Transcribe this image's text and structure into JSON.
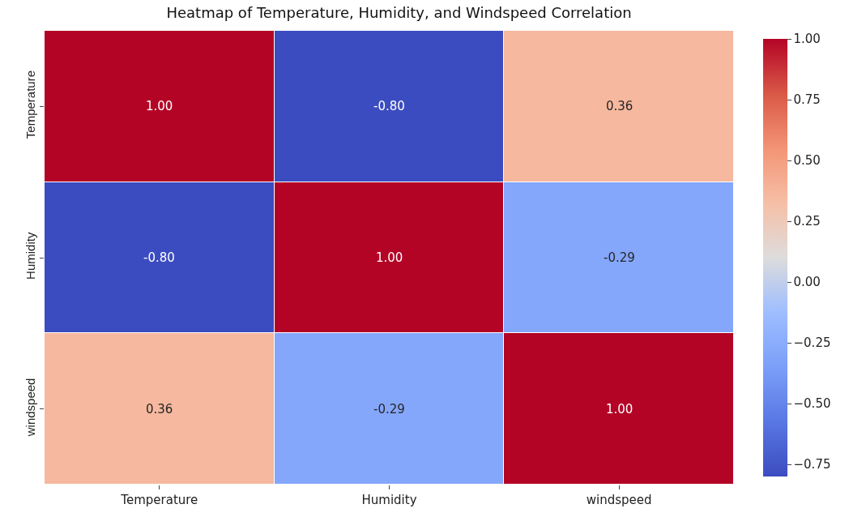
{
  "chart_data": {
    "type": "heatmap",
    "title": "Heatmap of Temperature, Humidity, and Windspeed Correlation",
    "categories": [
      "Temperature",
      "Humidity",
      "windspeed"
    ],
    "y_categories": [
      "Temperature",
      "Humidity",
      "windspeed"
    ],
    "cells": [
      [
        1.0,
        -0.8,
        0.36
      ],
      [
        -0.8,
        1.0,
        -0.29
      ],
      [
        0.36,
        -0.29,
        1.0
      ]
    ],
    "cell_labels": [
      [
        "1.00",
        "-0.80",
        "0.36"
      ],
      [
        "-0.80",
        "1.00",
        "-0.29"
      ],
      [
        "0.36",
        "-0.29",
        "1.00"
      ]
    ],
    "clim": [
      -0.8,
      1.0
    ],
    "cticks": [
      {
        "value": 1.0,
        "label": "1.00"
      },
      {
        "value": 0.75,
        "label": "0.75"
      },
      {
        "value": 0.5,
        "label": "0.50"
      },
      {
        "value": 0.25,
        "label": "0.25"
      },
      {
        "value": 0.0,
        "label": "0.00"
      },
      {
        "value": -0.25,
        "label": "−0.25"
      },
      {
        "value": -0.5,
        "label": "−0.50"
      },
      {
        "value": -0.75,
        "label": "−0.75"
      }
    ]
  }
}
